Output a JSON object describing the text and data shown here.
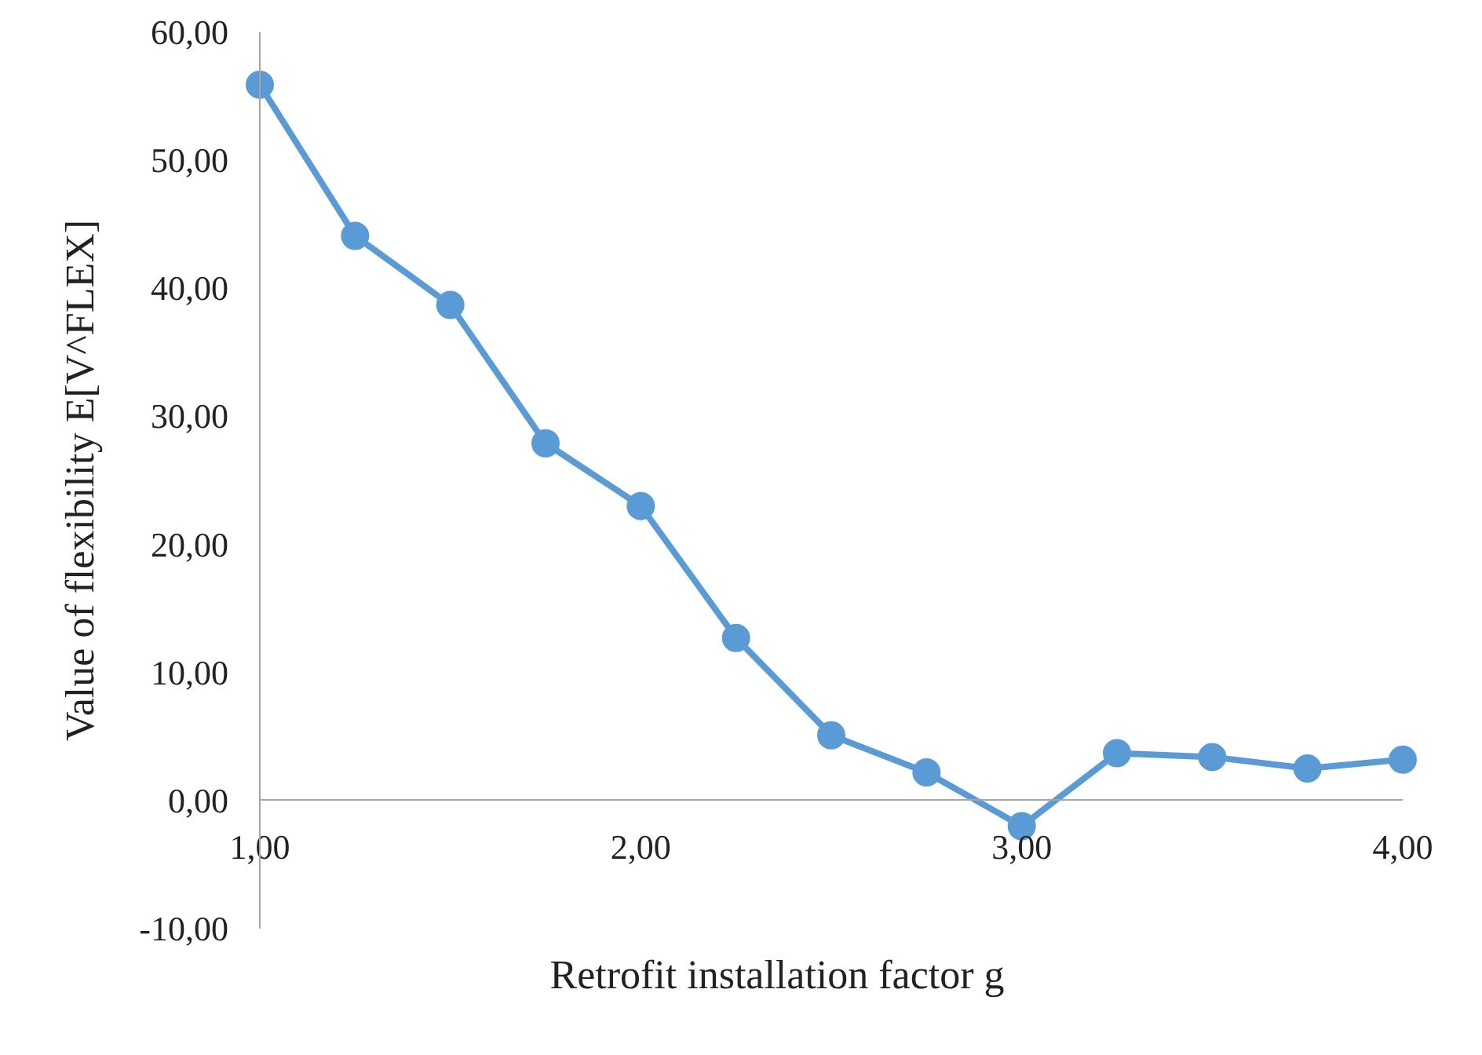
{
  "chart_data": {
    "type": "line",
    "xlabel": "Retrofit installation factor g",
    "ylabel": "Value of flexibility E[V^FLEX]",
    "x": [
      1.0,
      1.25,
      1.5,
      1.75,
      2.0,
      2.25,
      2.5,
      2.75,
      3.0,
      3.25,
      3.5,
      3.75,
      4.0
    ],
    "series": [
      {
        "color": "#5b9bd5",
        "values": [
          55.9,
          44.1,
          38.7,
          27.9,
          23.0,
          12.7,
          5.1,
          2.2,
          -2.0,
          3.7,
          3.4,
          2.5,
          3.2
        ]
      }
    ],
    "xlim": [
      1,
      4
    ],
    "ylim": [
      -10,
      60
    ],
    "xticks": [
      {
        "value": 1,
        "label": "1,00"
      },
      {
        "value": 2,
        "label": "2,00"
      },
      {
        "value": 3,
        "label": "3,00"
      },
      {
        "value": 4,
        "label": "4,00"
      }
    ],
    "yticks": [
      {
        "value": -10,
        "label": "-10,00"
      },
      {
        "value": 0,
        "label": "0,00"
      },
      {
        "value": 10,
        "label": "10,00"
      },
      {
        "value": 20,
        "label": "20,00"
      },
      {
        "value": 30,
        "label": "30,00"
      },
      {
        "value": 40,
        "label": "40,00"
      },
      {
        "value": 50,
        "label": "50,00"
      },
      {
        "value": 60,
        "label": "60,00"
      }
    ],
    "grid": false,
    "marker": "circle",
    "line_style": "solid"
  }
}
